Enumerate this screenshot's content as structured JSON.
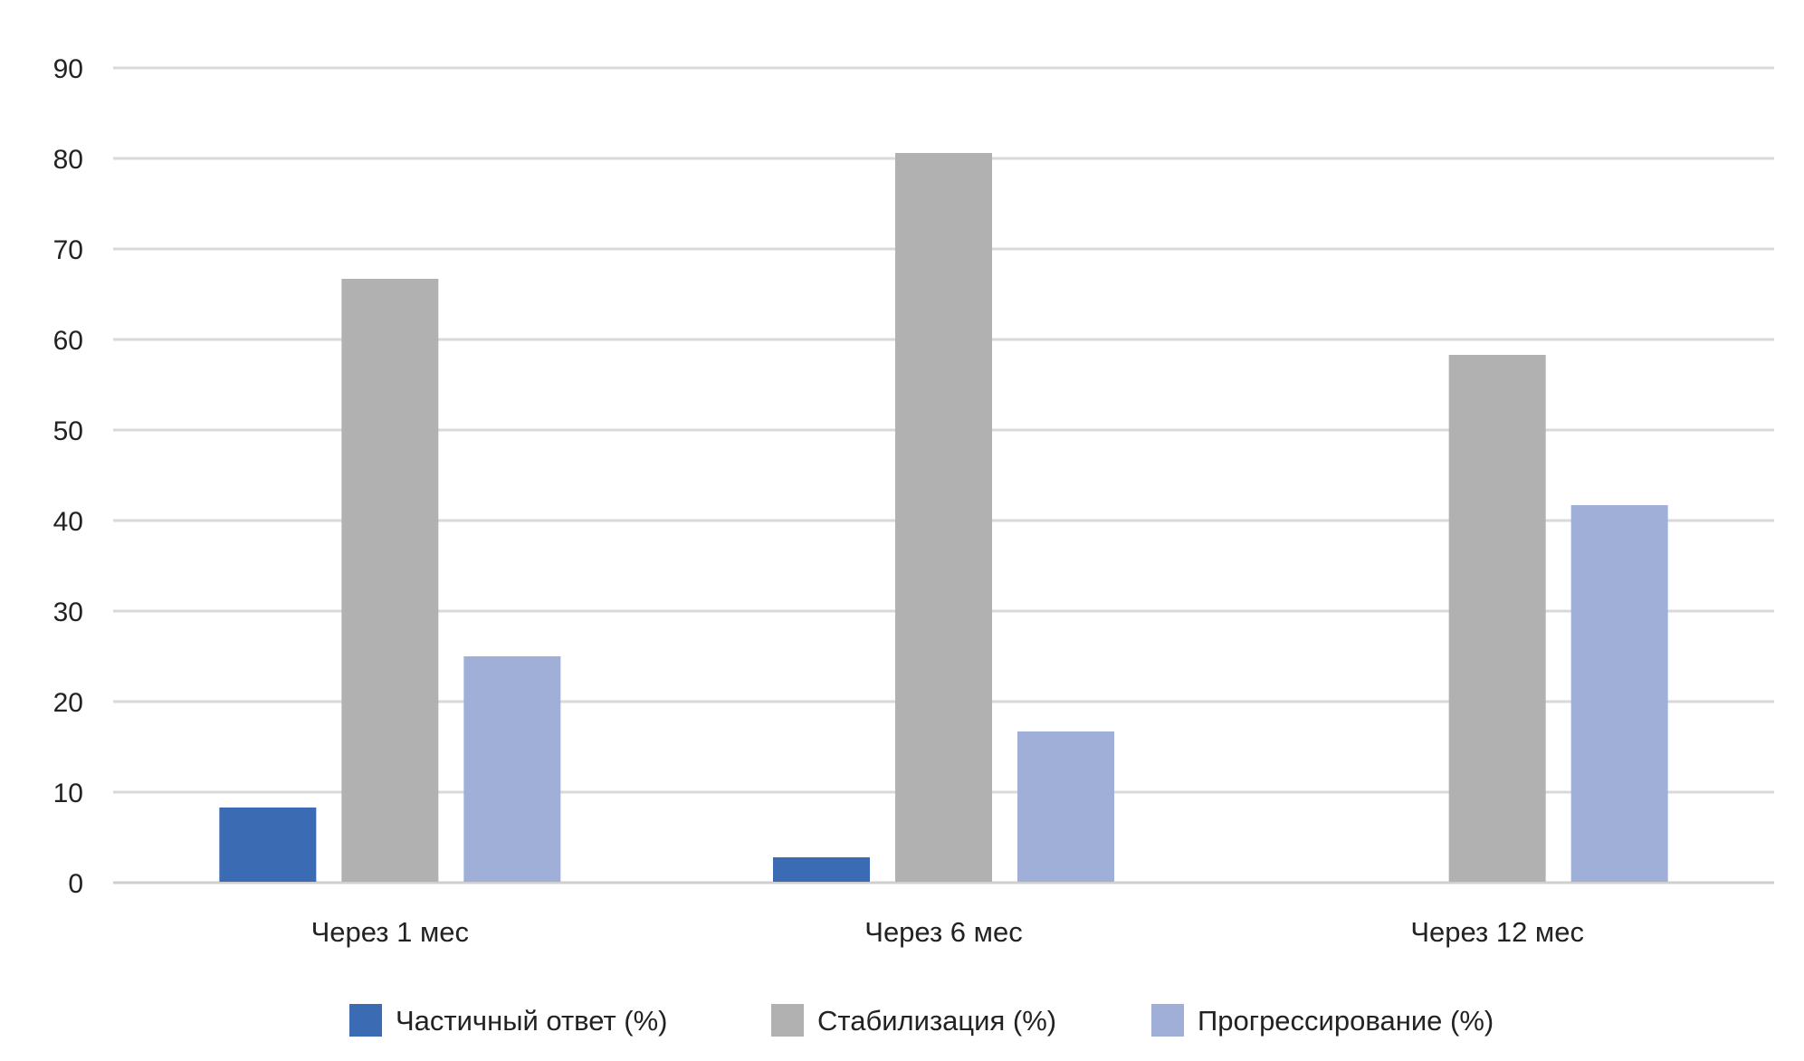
{
  "chart_data": {
    "type": "bar",
    "title": "",
    "xlabel": "",
    "ylabel": "",
    "ylim": [
      0,
      90
    ],
    "yticks": [
      0,
      10,
      20,
      30,
      40,
      50,
      60,
      70,
      80,
      90
    ],
    "yticks_text": [
      "0",
      "10",
      "20",
      "30",
      "40",
      "50",
      "60",
      "70",
      "80",
      "90"
    ],
    "grid": true,
    "legend_position": "bottom",
    "categories": [
      "Через 1 мес",
      "Через 6 мес",
      "Через 12 мес"
    ],
    "series": [
      {
        "name": "Частичный ответ (%)",
        "color": "#3b6bb3",
        "values": [
          8.3,
          2.8,
          0
        ]
      },
      {
        "name": "Стабилизация (%)",
        "color": "#b1b1b1",
        "values": [
          66.7,
          80.6,
          58.3
        ]
      },
      {
        "name": "Прогрессирование (%)",
        "color": "#9fafd8",
        "values": [
          25.0,
          16.7,
          41.7
        ]
      }
    ]
  }
}
